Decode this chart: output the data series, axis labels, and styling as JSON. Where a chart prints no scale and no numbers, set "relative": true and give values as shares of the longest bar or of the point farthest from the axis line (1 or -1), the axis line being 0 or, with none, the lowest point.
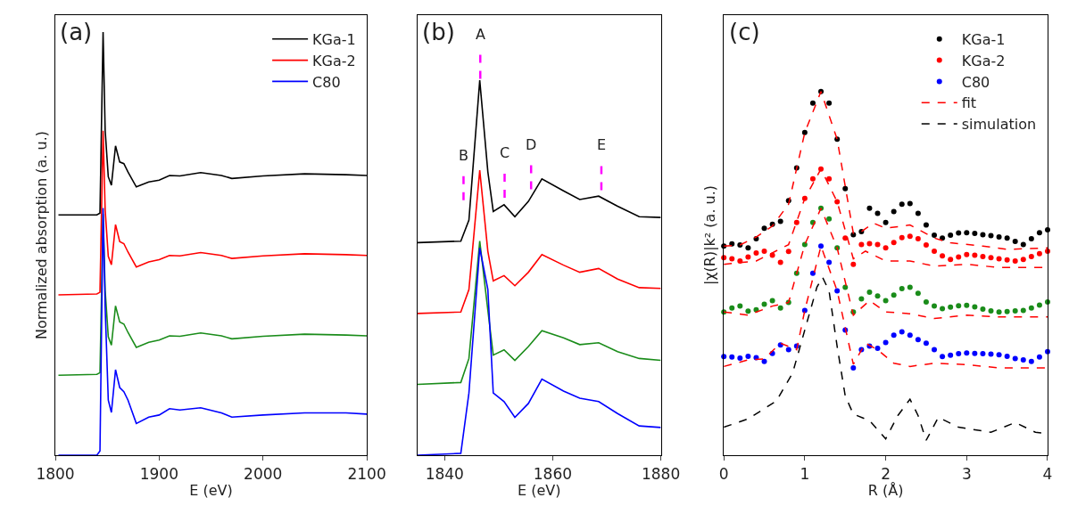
{
  "chart_data": [
    {
      "type": "line",
      "relative": true,
      "xlabel": "E (eV)",
      "ylabel": "Normalized absorption (a. u.)",
      "xlim": [
        1800,
        2100
      ],
      "xticks": [
        1800,
        1900,
        2000,
        2100
      ],
      "legend": "top right",
      "annotations": [
        "(a)"
      ],
      "x": [
        1803,
        1840,
        1843,
        1846,
        1848,
        1851,
        1854,
        1858,
        1862,
        1866,
        1870,
        1878,
        1890,
        1900,
        1910,
        1920,
        1940,
        1960,
        1970,
        2000,
        2040,
        2080,
        2100
      ],
      "series": [
        {
          "name": "KGa-1",
          "color": "#000000",
          "values": [
            0.568,
            0.568,
            0.572,
            1.0,
            0.768,
            0.658,
            0.638,
            0.731,
            0.693,
            0.689,
            0.669,
            0.634,
            0.646,
            0.65,
            0.661,
            0.66,
            0.668,
            0.661,
            0.654,
            0.66,
            0.665,
            0.663,
            0.661
          ]
        },
        {
          "name": "KGa-2",
          "color": "#ff0000",
          "values": [
            0.379,
            0.381,
            0.385,
            0.767,
            0.58,
            0.47,
            0.45,
            0.545,
            0.505,
            0.5,
            0.48,
            0.445,
            0.457,
            0.462,
            0.472,
            0.471,
            0.479,
            0.472,
            0.465,
            0.471,
            0.476,
            0.474,
            0.472
          ]
        },
        {
          "color": "#1a8c1a",
          "values": [
            0.189,
            0.191,
            0.195,
            0.57,
            0.39,
            0.28,
            0.26,
            0.353,
            0.315,
            0.31,
            0.29,
            0.255,
            0.267,
            0.272,
            0.282,
            0.281,
            0.289,
            0.282,
            0.275,
            0.281,
            0.286,
            0.284,
            0.282
          ]
        },
        {
          "name": "C80",
          "color": "#0000ff",
          "values": [
            0,
            0,
            0.01,
            0.584,
            0.35,
            0.13,
            0.101,
            0.202,
            0.16,
            0.15,
            0.13,
            0.075,
            0.09,
            0.095,
            0.11,
            0.107,
            0.112,
            0.1,
            0.09,
            0.095,
            0.1,
            0.1,
            0.097
          ]
        }
      ]
    },
    {
      "type": "line",
      "relative": true,
      "xlabel": "E (eV)",
      "xlim": [
        1835,
        1880
      ],
      "xticks": [
        1840,
        1860,
        1880
      ],
      "annotations": [
        "(b)"
      ],
      "ref_lines": [
        {
          "axis": "x",
          "value": 1846.6,
          "label": "A",
          "color": "#ff00ff",
          "line_style": "dashed"
        },
        {
          "axis": "x",
          "value": 1843.5,
          "label": "B",
          "color": "#ff00ff",
          "line_style": "dashed"
        },
        {
          "axis": "x",
          "value": 1851.1,
          "label": "C",
          "color": "#ff00ff",
          "line_style": "dashed"
        },
        {
          "axis": "x",
          "value": 1856.0,
          "label": "D",
          "color": "#ff00ff",
          "line_style": "dashed"
        },
        {
          "axis": "x",
          "value": 1869.0,
          "label": "E",
          "color": "#ff00ff",
          "line_style": "dashed"
        }
      ],
      "x": [
        1835,
        1843,
        1844.5,
        1846.5,
        1848,
        1849,
        1851,
        1853,
        1855.5,
        1858,
        1862,
        1865,
        1868.5,
        1872,
        1876,
        1880
      ],
      "series": [
        {
          "color": "#000000",
          "values": [
            0.567,
            0.571,
            0.627,
            1.0,
            0.756,
            0.65,
            0.668,
            0.636,
            0.677,
            0.737,
            0.705,
            0.682,
            0.691,
            0.664,
            0.636,
            0.634
          ]
        },
        {
          "color": "#ff0000",
          "values": [
            0.378,
            0.382,
            0.442,
            0.76,
            0.544,
            0.465,
            0.479,
            0.452,
            0.488,
            0.535,
            0.507,
            0.488,
            0.498,
            0.47,
            0.447,
            0.445
          ]
        },
        {
          "color": "#1a8c1a",
          "values": [
            0.189,
            0.194,
            0.258,
            0.571,
            0.387,
            0.267,
            0.281,
            0.253,
            0.29,
            0.332,
            0.313,
            0.295,
            0.3,
            0.276,
            0.258,
            0.253
          ]
        },
        {
          "color": "#0000ff",
          "values": [
            0,
            0.005,
            0.166,
            0.553,
            0.442,
            0.166,
            0.143,
            0.101,
            0.138,
            0.203,
            0.171,
            0.152,
            0.143,
            0.111,
            0.078,
            0.074
          ]
        }
      ]
    },
    {
      "type": "scatter",
      "relative": true,
      "xlabel": "R (Å)",
      "ylabel": "|χ(R)|k² (a. u.)",
      "xlim": [
        0,
        4
      ],
      "xticks": [
        0,
        1,
        2,
        3,
        4
      ],
      "legend": "top right",
      "annotations": [
        "(c)"
      ],
      "x": [
        0,
        0.1,
        0.2,
        0.3,
        0.4,
        0.5,
        0.6,
        0.7,
        0.8,
        0.9,
        1.0,
        1.1,
        1.2,
        1.3,
        1.4,
        1.5,
        1.6,
        1.7,
        1.8,
        1.9,
        2.0,
        2.1,
        2.2,
        2.3,
        2.4,
        2.5,
        2.6,
        2.7,
        2.8,
        2.9,
        3.0,
        3.1,
        3.2,
        3.3,
        3.4,
        3.5,
        3.6,
        3.7,
        3.8,
        3.9,
        4.0
      ],
      "series": [
        {
          "name": "KGa-1",
          "marker": "circle",
          "color": "#000000",
          "values": [
            0.575,
            0.581,
            0.578,
            0.57,
            0.595,
            0.624,
            0.635,
            0.643,
            0.7,
            0.79,
            0.887,
            0.968,
            1.0,
            0.968,
            0.869,
            0.733,
            0.606,
            0.615,
            0.679,
            0.665,
            0.64,
            0.67,
            0.69,
            0.692,
            0.665,
            0.633,
            0.605,
            0.597,
            0.605,
            0.611,
            0.612,
            0.61,
            0.606,
            0.604,
            0.6,
            0.597,
            0.588,
            0.579,
            0.595,
            0.612,
            0.62
          ]
        },
        {
          "name": "KGa-2",
          "marker": "circle",
          "color": "#ff0000",
          "values": [
            0.543,
            0.54,
            0.534,
            0.545,
            0.556,
            0.561,
            0.55,
            0.53,
            0.56,
            0.64,
            0.706,
            0.76,
            0.787,
            0.76,
            0.697,
            0.597,
            0.525,
            0.579,
            0.582,
            0.579,
            0.57,
            0.585,
            0.598,
            0.602,
            0.595,
            0.578,
            0.561,
            0.548,
            0.538,
            0.545,
            0.552,
            0.55,
            0.546,
            0.543,
            0.54,
            0.537,
            0.534,
            0.538,
            0.546,
            0.554,
            0.561
          ]
        },
        {
          "marker": "circle",
          "color": "#1a8c1a",
          "values": [
            0.394,
            0.405,
            0.41,
            0.396,
            0.4,
            0.415,
            0.425,
            0.405,
            0.42,
            0.5,
            0.579,
            0.64,
            0.679,
            0.65,
            0.57,
            0.462,
            0.394,
            0.43,
            0.448,
            0.438,
            0.425,
            0.44,
            0.458,
            0.462,
            0.445,
            0.421,
            0.41,
            0.403,
            0.407,
            0.411,
            0.412,
            0.408,
            0.402,
            0.397,
            0.394,
            0.395,
            0.397,
            0.398,
            0.405,
            0.413,
            0.421
          ]
        },
        {
          "name": "C80",
          "marker": "circle",
          "color": "#0000ff",
          "values": [
            0.271,
            0.27,
            0.267,
            0.272,
            0.268,
            0.258,
            0.28,
            0.303,
            0.29,
            0.3,
            0.398,
            0.5,
            0.575,
            0.53,
            0.452,
            0.344,
            0.24,
            0.29,
            0.3,
            0.294,
            0.31,
            0.33,
            0.339,
            0.33,
            0.318,
            0.308,
            0.29,
            0.271,
            0.275,
            0.279,
            0.281,
            0.28,
            0.279,
            0.278,
            0.276,
            0.272,
            0.266,
            0.262,
            0.258,
            0.27,
            0.285
          ]
        },
        {
          "type": "line",
          "line_style": "dashed",
          "name": "fit",
          "color": "#ff0000",
          "x": [
            0,
            0.2,
            0.4,
            0.6,
            0.8,
            1.0,
            1.2,
            1.4,
            1.6,
            1.7,
            1.85,
            2.0,
            2.3,
            2.6,
            2.8,
            3.2,
            3.5,
            4.0
          ],
          "values": [
            0.575,
            0.578,
            0.6,
            0.63,
            0.69,
            0.887,
            1.0,
            0.869,
            0.61,
            0.615,
            0.638,
            0.624,
            0.633,
            0.597,
            0.584,
            0.575,
            0.566,
            0.57
          ]
        },
        {
          "type": "line",
          "line_style": "dashed",
          "color": "#ff0000",
          "x": [
            0,
            0.4,
            0.8,
            1.0,
            1.2,
            1.4,
            1.6,
            1.75,
            2.0,
            2.3,
            2.6,
            3.0,
            3.4,
            4.0
          ],
          "values": [
            0.525,
            0.534,
            0.579,
            0.706,
            0.787,
            0.697,
            0.54,
            0.561,
            0.534,
            0.534,
            0.52,
            0.525,
            0.516,
            0.516
          ]
        },
        {
          "type": "line",
          "line_style": "dashed",
          "color": "#ff0000",
          "x": [
            0,
            0.3,
            0.6,
            0.8,
            1.0,
            1.2,
            1.4,
            1.6,
            1.8,
            2.0,
            2.3,
            2.6,
            3.0,
            3.4,
            4.0
          ],
          "values": [
            0.394,
            0.385,
            0.41,
            0.42,
            0.579,
            0.679,
            0.57,
            0.385,
            0.425,
            0.394,
            0.389,
            0.376,
            0.385,
            0.38,
            0.38
          ]
        },
        {
          "type": "line",
          "line_style": "dashed",
          "color": "#ff0000",
          "x": [
            0,
            0.3,
            0.5,
            0.7,
            0.9,
            1.0,
            1.2,
            1.4,
            1.6,
            1.75,
            1.9,
            2.1,
            2.3,
            2.6,
            3.0,
            3.4,
            4.0
          ],
          "values": [
            0.244,
            0.262,
            0.265,
            0.308,
            0.29,
            0.398,
            0.575,
            0.452,
            0.25,
            0.308,
            0.29,
            0.253,
            0.244,
            0.253,
            0.249,
            0.24,
            0.24
          ]
        },
        {
          "type": "line",
          "line_style": "dashed",
          "name": "simulation",
          "color": "#000000",
          "x": [
            0,
            0.3,
            0.65,
            0.85,
            1.0,
            1.15,
            1.22,
            1.3,
            1.4,
            1.5,
            1.6,
            1.8,
            2.0,
            2.15,
            2.3,
            2.4,
            2.5,
            2.65,
            2.9,
            3.3,
            3.6,
            3.85,
            4.0
          ],
          "values": [
            0.077,
            0.1,
            0.149,
            0.226,
            0.344,
            0.462,
            0.489,
            0.452,
            0.299,
            0.163,
            0.113,
            0.095,
            0.045,
            0.109,
            0.154,
            0.109,
            0.041,
            0.104,
            0.077,
            0.063,
            0.09,
            0.063,
            0.059
          ]
        }
      ]
    }
  ]
}
